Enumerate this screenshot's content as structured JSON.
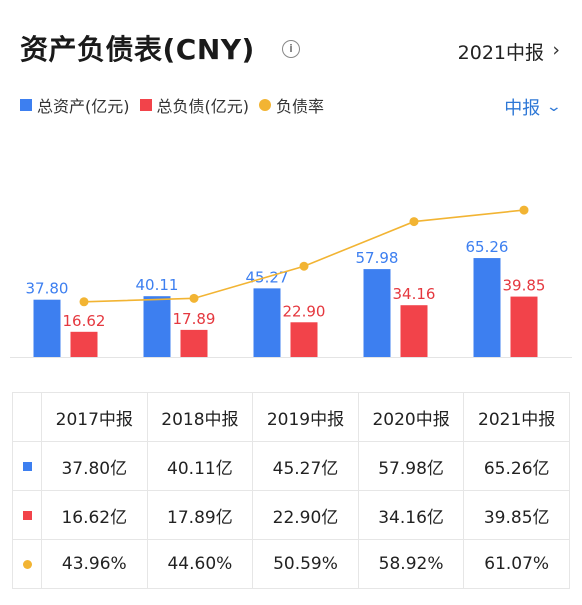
{
  "header": {
    "title": "资产负债表(CNY)",
    "period": "2021中报",
    "selector": "中报"
  },
  "icons": {
    "info": "info-icon",
    "period_chevron": "chevron-right-icon",
    "selector_chevron": "chevron-down-icon"
  },
  "colors": {
    "assets": "#3d7ff0",
    "liabilities": "#f2434a",
    "ratio": "#f2b433"
  },
  "chart_data": {
    "type": "bar",
    "categories": [
      "2017中报",
      "2018中报",
      "2019中报",
      "2020中报",
      "2021中报"
    ],
    "series": [
      {
        "name": "总资产(亿元)",
        "type": "bar",
        "values": [
          37.8,
          40.11,
          45.27,
          57.98,
          65.26
        ],
        "labels": [
          "37.80",
          "40.11",
          "45.27",
          "57.98",
          "65.26"
        ]
      },
      {
        "name": "总负债(亿元)",
        "type": "bar",
        "values": [
          16.62,
          17.89,
          22.9,
          34.16,
          39.85
        ],
        "labels": [
          "16.62",
          "17.89",
          "22.90",
          "34.16",
          "39.85"
        ]
      },
      {
        "name": "负债率",
        "type": "line",
        "values": [
          43.96,
          44.6,
          50.59,
          58.92,
          61.07
        ]
      }
    ]
  },
  "table": {
    "headers": [
      "2017中报",
      "2018中报",
      "2019中报",
      "2020中报",
      "2021中报"
    ],
    "rows": [
      {
        "marker": "square-blue",
        "values": [
          "37.80亿",
          "40.11亿",
          "45.27亿",
          "57.98亿",
          "65.26亿"
        ]
      },
      {
        "marker": "square-red",
        "values": [
          "16.62亿",
          "17.89亿",
          "22.90亿",
          "34.16亿",
          "39.85亿"
        ]
      },
      {
        "marker": "dot-orange",
        "values": [
          "43.96%",
          "44.60%",
          "50.59%",
          "58.92%",
          "61.07%"
        ]
      }
    ]
  }
}
